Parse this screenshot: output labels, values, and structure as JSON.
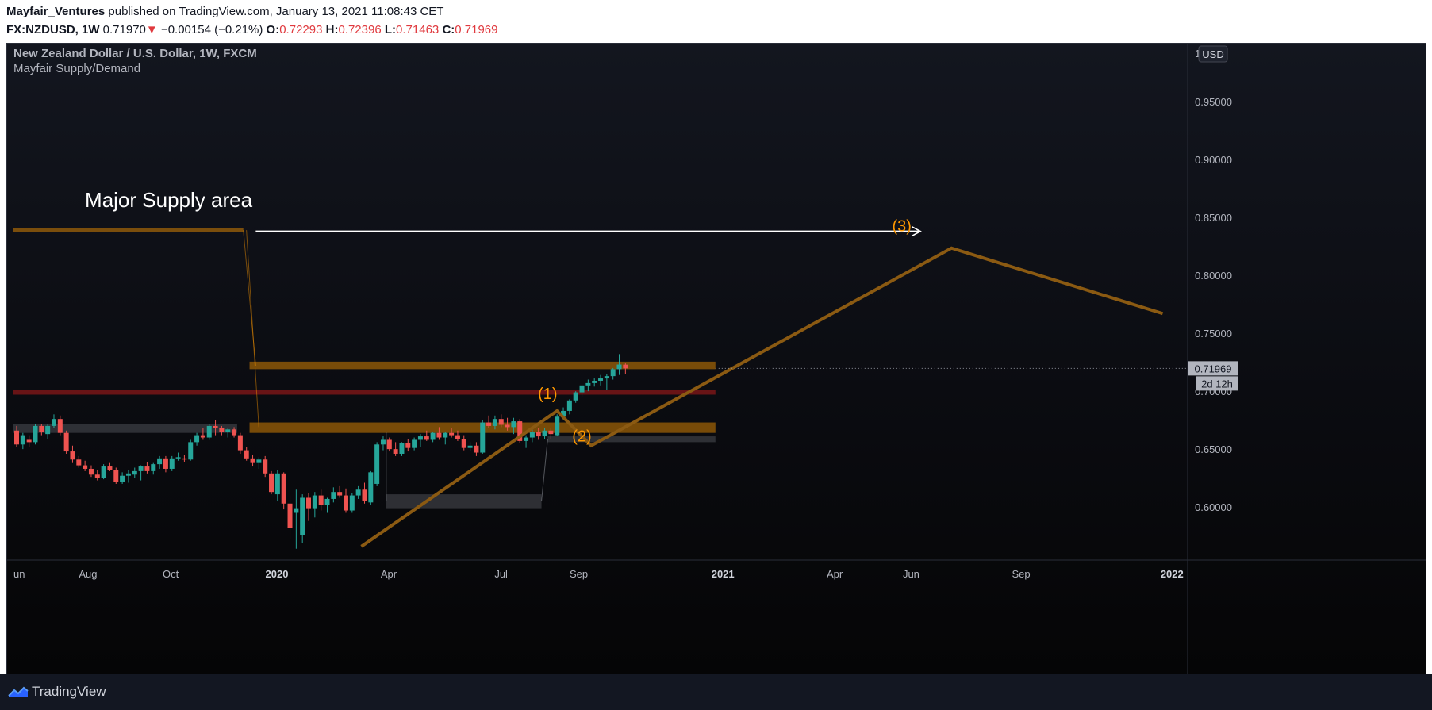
{
  "header": {
    "author": "Mayfair_Ventures",
    "published_text": "published on TradingView.com, January 13, 2021 11:08:43 CET",
    "symbol": "FX:NZDUSD, 1W",
    "last_price": "0.71970",
    "change_arrow": "▼",
    "change": "−0.00154 (−0.21%)",
    "ohlc": [
      {
        "label": "O:",
        "value": "0.72293"
      },
      {
        "label": "H:",
        "value": "0.72396"
      },
      {
        "label": "L:",
        "value": "0.71463"
      },
      {
        "label": "C:",
        "value": "0.71969"
      }
    ]
  },
  "legend": {
    "title": "New Zealand Dollar / U.S. Dollar, 1W, FXCM",
    "indicator": "Mayfair Supply/Demand"
  },
  "price_axis": {
    "currency_button": "USD",
    "top_partial_tick": "1",
    "ticks": [
      "0.95000",
      "0.90000",
      "0.85000",
      "0.80000",
      "0.75000",
      "0.70000",
      "0.65000",
      "0.60000"
    ],
    "current_price_tag": "0.71969",
    "countdown_tag": "2d 12h"
  },
  "time_axis": {
    "labels": [
      {
        "text": "un",
        "bold": false
      },
      {
        "text": "Aug",
        "bold": false
      },
      {
        "text": "Oct",
        "bold": false
      },
      {
        "text": "2020",
        "bold": true
      },
      {
        "text": "Apr",
        "bold": false
      },
      {
        "text": "Jul",
        "bold": false
      },
      {
        "text": "Sep",
        "bold": false
      },
      {
        "text": "2021",
        "bold": true
      },
      {
        "text": "Apr",
        "bold": false
      },
      {
        "text": "Jun",
        "bold": false
      },
      {
        "text": "Sep",
        "bold": false
      },
      {
        "text": "2022",
        "bold": true
      }
    ]
  },
  "annotations": {
    "major_supply": "Major Supply area",
    "wave_labels": [
      {
        "text": "(1)",
        "x_week": 86,
        "y": 0.6835
      },
      {
        "text": "(2)",
        "x_week": 91.5,
        "y": 0.647
      },
      {
        "text": "(3)",
        "x_week": 143,
        "y": 0.8285
      }
    ]
  },
  "footer": {
    "brand": "TradingView"
  },
  "colors": {
    "bull": "#26a69a",
    "bear": "#ef5350",
    "supply_band": "#ff9800",
    "demand_band": "#b2b5be",
    "red_zone": "#b71c1c",
    "wave_line": "#8b5a12",
    "wave_label": "#ff9800",
    "annotation": "#ffffff"
  },
  "chart_data": {
    "type": "candlestick",
    "timeframe": "1W",
    "x_unit": "weeks since first visible bar",
    "y_range": [
      0.565,
      1.0
    ],
    "candles": [
      {
        "o": 0.666,
        "h": 0.67,
        "l": 0.652,
        "c": 0.654
      },
      {
        "o": 0.654,
        "h": 0.664,
        "l": 0.65,
        "c": 0.662
      },
      {
        "o": 0.658,
        "h": 0.662,
        "l": 0.652,
        "c": 0.656
      },
      {
        "o": 0.656,
        "h": 0.672,
        "l": 0.654,
        "c": 0.67
      },
      {
        "o": 0.67,
        "h": 0.672,
        "l": 0.662,
        "c": 0.665
      },
      {
        "o": 0.663,
        "h": 0.672,
        "l": 0.659,
        "c": 0.67
      },
      {
        "o": 0.67,
        "h": 0.68,
        "l": 0.668,
        "c": 0.676
      },
      {
        "o": 0.676,
        "h": 0.679,
        "l": 0.662,
        "c": 0.664
      },
      {
        "o": 0.664,
        "h": 0.666,
        "l": 0.646,
        "c": 0.648
      },
      {
        "o": 0.648,
        "h": 0.653,
        "l": 0.638,
        "c": 0.641
      },
      {
        "o": 0.641,
        "h": 0.644,
        "l": 0.634,
        "c": 0.636
      },
      {
        "o": 0.636,
        "h": 0.64,
        "l": 0.631,
        "c": 0.633
      },
      {
        "o": 0.633,
        "h": 0.636,
        "l": 0.626,
        "c": 0.628
      },
      {
        "o": 0.628,
        "h": 0.632,
        "l": 0.623,
        "c": 0.625
      },
      {
        "o": 0.625,
        "h": 0.637,
        "l": 0.624,
        "c": 0.635
      },
      {
        "o": 0.635,
        "h": 0.638,
        "l": 0.631,
        "c": 0.632
      },
      {
        "o": 0.632,
        "h": 0.634,
        "l": 0.62,
        "c": 0.622
      },
      {
        "o": 0.622,
        "h": 0.63,
        "l": 0.62,
        "c": 0.627
      },
      {
        "o": 0.627,
        "h": 0.632,
        "l": 0.621,
        "c": 0.629
      },
      {
        "o": 0.628,
        "h": 0.634,
        "l": 0.625,
        "c": 0.631
      },
      {
        "o": 0.631,
        "h": 0.636,
        "l": 0.623,
        "c": 0.635
      },
      {
        "o": 0.635,
        "h": 0.639,
        "l": 0.629,
        "c": 0.631
      },
      {
        "o": 0.631,
        "h": 0.638,
        "l": 0.628,
        "c": 0.637
      },
      {
        "o": 0.637,
        "h": 0.644,
        "l": 0.633,
        "c": 0.642
      },
      {
        "o": 0.642,
        "h": 0.644,
        "l": 0.63,
        "c": 0.633
      },
      {
        "o": 0.633,
        "h": 0.644,
        "l": 0.631,
        "c": 0.642
      },
      {
        "o": 0.642,
        "h": 0.647,
        "l": 0.64,
        "c": 0.643
      },
      {
        "o": 0.642,
        "h": 0.645,
        "l": 0.639,
        "c": 0.641
      },
      {
        "o": 0.641,
        "h": 0.658,
        "l": 0.64,
        "c": 0.656
      },
      {
        "o": 0.656,
        "h": 0.664,
        "l": 0.653,
        "c": 0.662
      },
      {
        "o": 0.662,
        "h": 0.668,
        "l": 0.658,
        "c": 0.66
      },
      {
        "o": 0.66,
        "h": 0.672,
        "l": 0.658,
        "c": 0.67
      },
      {
        "o": 0.67,
        "h": 0.675,
        "l": 0.662,
        "c": 0.668
      },
      {
        "o": 0.668,
        "h": 0.67,
        "l": 0.662,
        "c": 0.665
      },
      {
        "o": 0.665,
        "h": 0.668,
        "l": 0.66,
        "c": 0.667
      },
      {
        "o": 0.667,
        "h": 0.669,
        "l": 0.66,
        "c": 0.662
      },
      {
        "o": 0.662,
        "h": 0.664,
        "l": 0.646,
        "c": 0.649
      },
      {
        "o": 0.649,
        "h": 0.652,
        "l": 0.64,
        "c": 0.642
      },
      {
        "o": 0.642,
        "h": 0.645,
        "l": 0.635,
        "c": 0.638
      },
      {
        "o": 0.638,
        "h": 0.643,
        "l": 0.633,
        "c": 0.641
      },
      {
        "o": 0.641,
        "h": 0.644,
        "l": 0.626,
        "c": 0.629
      },
      {
        "o": 0.629,
        "h": 0.631,
        "l": 0.611,
        "c": 0.613
      },
      {
        "o": 0.611,
        "h": 0.632,
        "l": 0.605,
        "c": 0.629
      },
      {
        "o": 0.629,
        "h": 0.63,
        "l": 0.598,
        "c": 0.603
      },
      {
        "o": 0.603,
        "h": 0.61,
        "l": 0.572,
        "c": 0.582
      },
      {
        "o": 0.595,
        "h": 0.615,
        "l": 0.564,
        "c": 0.599
      },
      {
        "o": 0.576,
        "h": 0.611,
        "l": 0.569,
        "c": 0.608
      },
      {
        "o": 0.608,
        "h": 0.612,
        "l": 0.588,
        "c": 0.599
      },
      {
        "o": 0.599,
        "h": 0.613,
        "l": 0.591,
        "c": 0.61
      },
      {
        "o": 0.61,
        "h": 0.615,
        "l": 0.597,
        "c": 0.602
      },
      {
        "o": 0.602,
        "h": 0.608,
        "l": 0.595,
        "c": 0.607
      },
      {
        "o": 0.607,
        "h": 0.617,
        "l": 0.604,
        "c": 0.613
      },
      {
        "o": 0.613,
        "h": 0.618,
        "l": 0.608,
        "c": 0.61
      },
      {
        "o": 0.61,
        "h": 0.616,
        "l": 0.595,
        "c": 0.597
      },
      {
        "o": 0.597,
        "h": 0.612,
        "l": 0.595,
        "c": 0.61
      },
      {
        "o": 0.61,
        "h": 0.618,
        "l": 0.607,
        "c": 0.615
      },
      {
        "o": 0.615,
        "h": 0.621,
        "l": 0.603,
        "c": 0.605
      },
      {
        "o": 0.604,
        "h": 0.631,
        "l": 0.602,
        "c": 0.63
      },
      {
        "o": 0.62,
        "h": 0.656,
        "l": 0.618,
        "c": 0.654
      },
      {
        "o": 0.654,
        "h": 0.661,
        "l": 0.649,
        "c": 0.658
      },
      {
        "o": 0.658,
        "h": 0.66,
        "l": 0.648,
        "c": 0.65
      },
      {
        "o": 0.65,
        "h": 0.656,
        "l": 0.644,
        "c": 0.646
      },
      {
        "o": 0.646,
        "h": 0.656,
        "l": 0.644,
        "c": 0.655
      },
      {
        "o": 0.655,
        "h": 0.659,
        "l": 0.648,
        "c": 0.651
      },
      {
        "o": 0.651,
        "h": 0.66,
        "l": 0.649,
        "c": 0.658
      },
      {
        "o": 0.658,
        "h": 0.663,
        "l": 0.652,
        "c": 0.661
      },
      {
        "o": 0.661,
        "h": 0.666,
        "l": 0.657,
        "c": 0.658
      },
      {
        "o": 0.658,
        "h": 0.665,
        "l": 0.656,
        "c": 0.664
      },
      {
        "o": 0.664,
        "h": 0.669,
        "l": 0.658,
        "c": 0.66
      },
      {
        "o": 0.66,
        "h": 0.665,
        "l": 0.654,
        "c": 0.664
      },
      {
        "o": 0.664,
        "h": 0.668,
        "l": 0.66,
        "c": 0.662
      },
      {
        "o": 0.662,
        "h": 0.666,
        "l": 0.657,
        "c": 0.659
      },
      {
        "o": 0.659,
        "h": 0.662,
        "l": 0.649,
        "c": 0.651
      },
      {
        "o": 0.651,
        "h": 0.656,
        "l": 0.648,
        "c": 0.653
      },
      {
        "o": 0.653,
        "h": 0.656,
        "l": 0.644,
        "c": 0.647
      },
      {
        "o": 0.647,
        "h": 0.675,
        "l": 0.646,
        "c": 0.673
      },
      {
        "o": 0.673,
        "h": 0.679,
        "l": 0.668,
        "c": 0.67
      },
      {
        "o": 0.67,
        "h": 0.679,
        "l": 0.667,
        "c": 0.676
      },
      {
        "o": 0.676,
        "h": 0.68,
        "l": 0.669,
        "c": 0.671
      },
      {
        "o": 0.671,
        "h": 0.677,
        "l": 0.666,
        "c": 0.669
      },
      {
        "o": 0.669,
        "h": 0.677,
        "l": 0.663,
        "c": 0.674
      },
      {
        "o": 0.674,
        "h": 0.676,
        "l": 0.655,
        "c": 0.657
      },
      {
        "o": 0.657,
        "h": 0.662,
        "l": 0.651,
        "c": 0.66
      },
      {
        "o": 0.66,
        "h": 0.668,
        "l": 0.656,
        "c": 0.665
      },
      {
        "o": 0.665,
        "h": 0.668,
        "l": 0.658,
        "c": 0.661
      },
      {
        "o": 0.661,
        "h": 0.668,
        "l": 0.659,
        "c": 0.666
      },
      {
        "o": 0.666,
        "h": 0.668,
        "l": 0.659,
        "c": 0.663
      },
      {
        "o": 0.662,
        "h": 0.68,
        "l": 0.661,
        "c": 0.678
      },
      {
        "o": 0.678,
        "h": 0.686,
        "l": 0.675,
        "c": 0.683
      },
      {
        "o": 0.683,
        "h": 0.693,
        "l": 0.68,
        "c": 0.692
      },
      {
        "o": 0.692,
        "h": 0.7,
        "l": 0.69,
        "c": 0.699
      },
      {
        "o": 0.699,
        "h": 0.706,
        "l": 0.695,
        "c": 0.705
      },
      {
        "o": 0.705,
        "h": 0.71,
        "l": 0.7,
        "c": 0.707
      },
      {
        "o": 0.707,
        "h": 0.711,
        "l": 0.704,
        "c": 0.709
      },
      {
        "o": 0.709,
        "h": 0.714,
        "l": 0.705,
        "c": 0.711
      },
      {
        "o": 0.711,
        "h": 0.715,
        "l": 0.701,
        "c": 0.713
      },
      {
        "o": 0.713,
        "h": 0.72,
        "l": 0.71,
        "c": 0.719
      },
      {
        "o": 0.719,
        "h": 0.732,
        "l": 0.714,
        "c": 0.723
      },
      {
        "o": 0.7229,
        "h": 0.724,
        "l": 0.7146,
        "c": 0.7197
      }
    ],
    "zones": [
      {
        "name": "major-supply",
        "kind": "supply",
        "x0": 0,
        "x1": 37,
        "y0": 0.8375,
        "y1": 0.8405
      },
      {
        "name": "supply-upper",
        "kind": "supply",
        "x0": 38,
        "x1": 113,
        "y0": 0.719,
        "y1": 0.7255
      },
      {
        "name": "red-zone",
        "kind": "red",
        "x0": 0,
        "x1": 113,
        "y0": 0.697,
        "y1": 0.701
      },
      {
        "name": "supply-mid",
        "kind": "supply",
        "x0": 38,
        "x1": 113,
        "y0": 0.664,
        "y1": 0.673
      },
      {
        "name": "demand-left",
        "kind": "demand",
        "x0": 0,
        "x1": 36,
        "y0": 0.664,
        "y1": 0.672
      },
      {
        "name": "demand-low",
        "kind": "demand",
        "x0": 60,
        "x1": 85,
        "y0": 0.599,
        "y1": 0.611
      },
      {
        "name": "demand-right",
        "kind": "demand",
        "x0": 86,
        "x1": 113,
        "y0": 0.656,
        "y1": 0.661
      }
    ],
    "wave_projection": [
      {
        "x": 56,
        "y": 0.566
      },
      {
        "x": 87.5,
        "y": 0.683
      },
      {
        "x": 93,
        "y": 0.653
      },
      {
        "x": 151,
        "y": 0.8235
      },
      {
        "x": 185,
        "y": 0.767
      }
    ],
    "supply_arrow": {
      "x0": 39,
      "x1": 146,
      "y": 0.838
    },
    "current_price": 0.71969
  }
}
